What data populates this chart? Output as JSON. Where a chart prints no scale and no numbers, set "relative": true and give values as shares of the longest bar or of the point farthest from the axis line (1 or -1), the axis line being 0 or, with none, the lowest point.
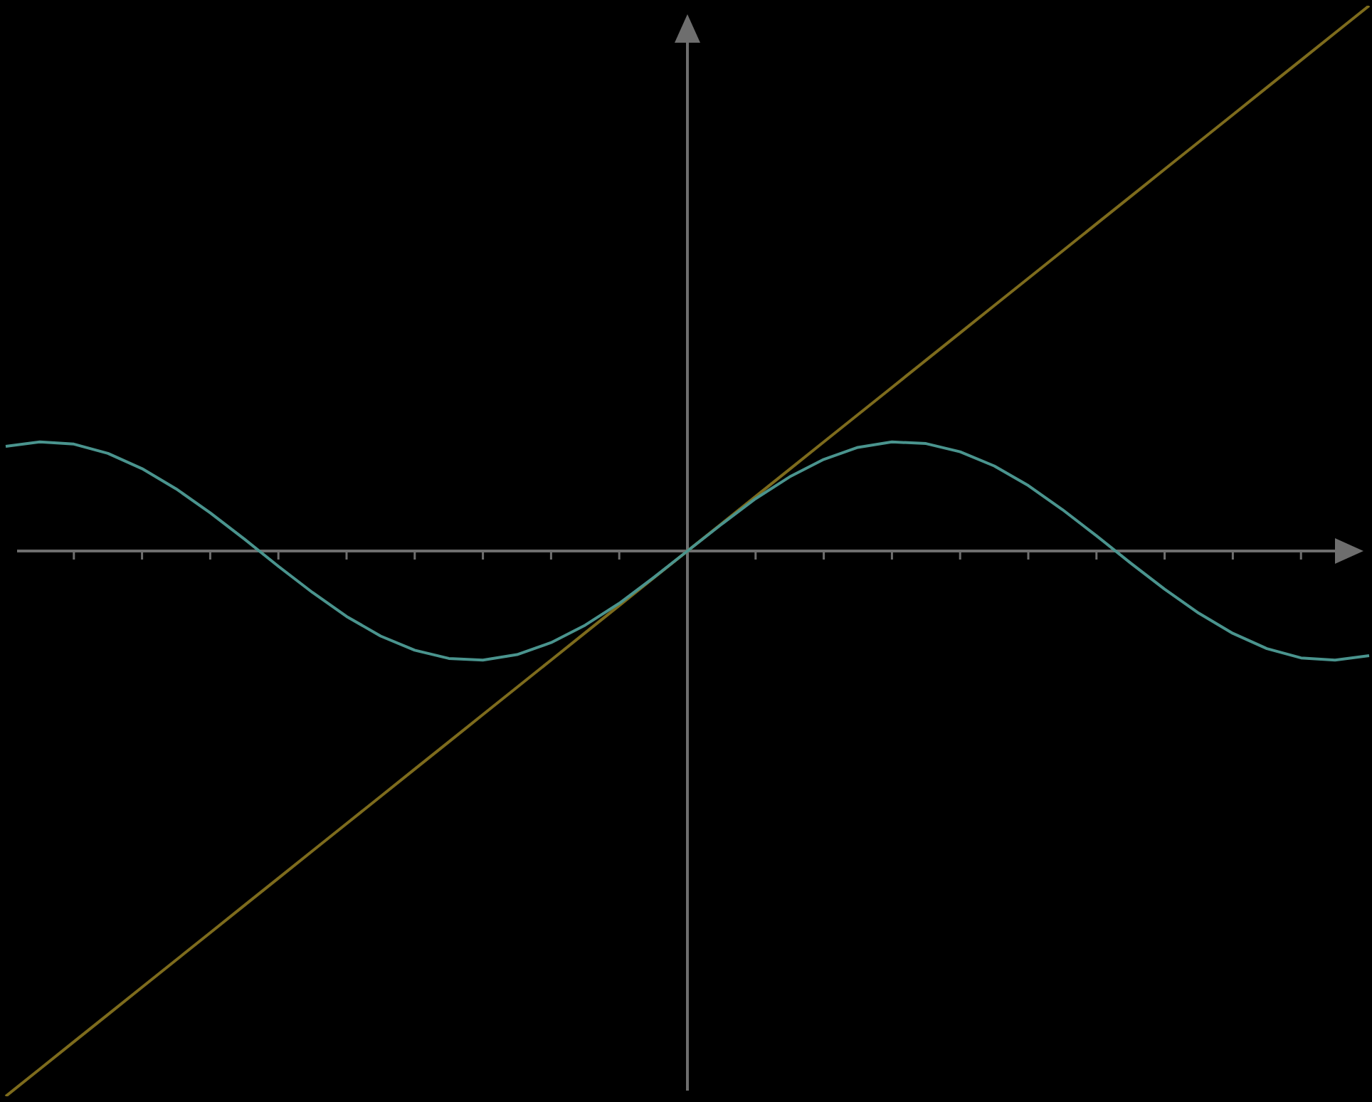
{
  "chart_data": {
    "type": "line",
    "relative": true,
    "marker": "none",
    "categories": [
      null,
      null,
      null,
      null,
      null,
      null,
      null,
      null,
      null,
      null,
      null,
      null,
      null,
      null,
      null,
      null,
      null,
      null,
      null,
      null,
      null,
      null,
      null,
      null,
      null,
      null,
      null,
      null,
      null,
      null,
      null,
      null,
      null,
      null,
      null,
      null,
      null,
      null,
      null,
      null,
      null
    ],
    "series": [
      {
        "color": "#4a948e",
        "values": [
          0.192,
          0.2,
          0.196,
          0.179,
          0.151,
          0.114,
          0.07,
          0.022,
          -0.028,
          -0.076,
          -0.12,
          -0.156,
          -0.182,
          -0.197,
          -0.2,
          -0.19,
          -0.168,
          -0.136,
          -0.096,
          -0.049,
          0,
          0.049,
          0.096,
          0.136,
          0.168,
          0.19,
          0.2,
          0.197,
          0.182,
          0.156,
          0.12,
          0.076,
          0.028,
          -0.022,
          -0.07,
          -0.114,
          -0.151,
          -0.179,
          -0.196,
          -0.2,
          -0.192
        ]
      },
      {
        "color": "#7d6b1c",
        "values": [
          -1,
          -0.95,
          -0.9,
          -0.85,
          -0.8,
          -0.75,
          -0.7,
          -0.65,
          -0.6,
          -0.55,
          -0.5,
          -0.45,
          -0.4,
          -0.35,
          -0.3,
          -0.25,
          -0.2,
          -0.15,
          -0.1,
          -0.05,
          0,
          0.05,
          0.1,
          0.15,
          0.2,
          0.25,
          0.3,
          0.35,
          0.4,
          0.45,
          0.5,
          0.55,
          0.6,
          0.65,
          0.7,
          0.75,
          0.8,
          0.85,
          0.9,
          0.95,
          1
        ]
      }
    ]
  }
}
